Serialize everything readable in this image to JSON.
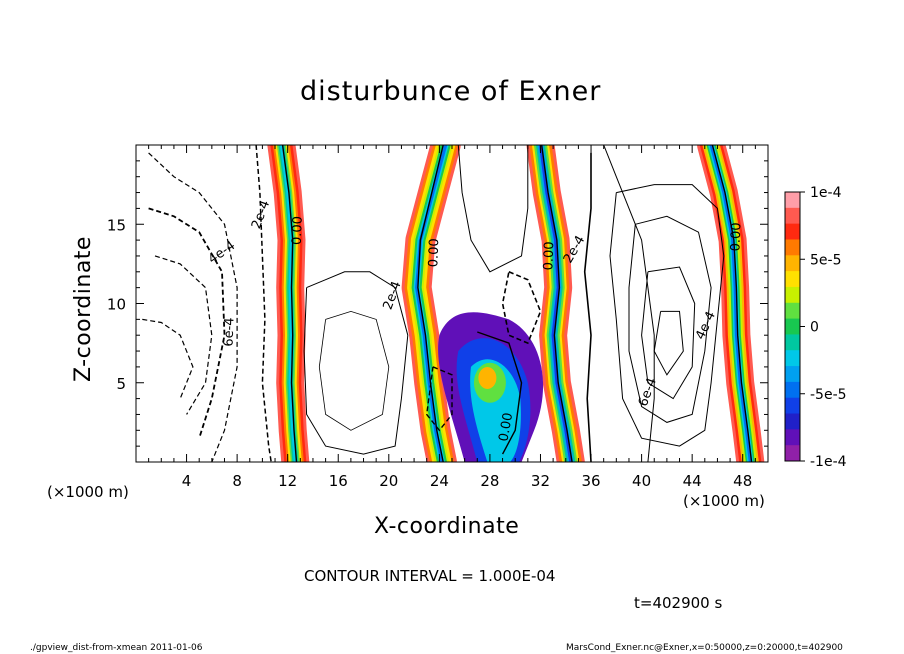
{
  "chart_data": {
    "type": "heatmap",
    "title": "disturbunce of Exner",
    "xlabel": "X-coordinate",
    "ylabel": "Z-coordinate",
    "x_unit": "(×1000 m)",
    "y_unit_note": "(×1000 m)",
    "xlim": [
      0,
      50
    ],
    "ylim": [
      0,
      20
    ],
    "x_ticks": [
      4,
      8,
      12,
      16,
      20,
      24,
      28,
      32,
      36,
      40,
      44,
      48
    ],
    "y_ticks": [
      5,
      10,
      15
    ],
    "colorbar": {
      "range": [
        -0.0001,
        0.0001
      ],
      "tick_labels": [
        "1e-4",
        "5e-5",
        "0",
        "-5e-5",
        "-1e-4"
      ],
      "tick_values": [
        0.0001,
        5e-05,
        0,
        -5e-05,
        -0.0001
      ],
      "colors": [
        "#ff9ea8",
        "#ff5a50",
        "#ff2a10",
        "#ff7a00",
        "#ffb400",
        "#ffe000",
        "#c8f000",
        "#60e040",
        "#18c850",
        "#00c8a0",
        "#00c8e8",
        "#00a0f0",
        "#0070f0",
        "#1040e8",
        "#2020c8",
        "#6010b8",
        "#9020a8"
      ]
    },
    "contour_labels": [
      "2e-4",
      "4e-4",
      "6e-4",
      "0.00",
      "0.00",
      "2e-4",
      "0.00",
      "0.00",
      "2e-4",
      "4e-4",
      "6e-4",
      "0.00"
    ],
    "contour_interval_text": "CONTOUR INTERVAL = 1.000E-04",
    "time_text": "t=402900  s"
  },
  "footer": {
    "left": "./gpview_dist-from-xmean  2011-01-06",
    "right": "MarsCond_Exner.nc@Exner,x=0:50000,z=0:20000,t=402900"
  }
}
